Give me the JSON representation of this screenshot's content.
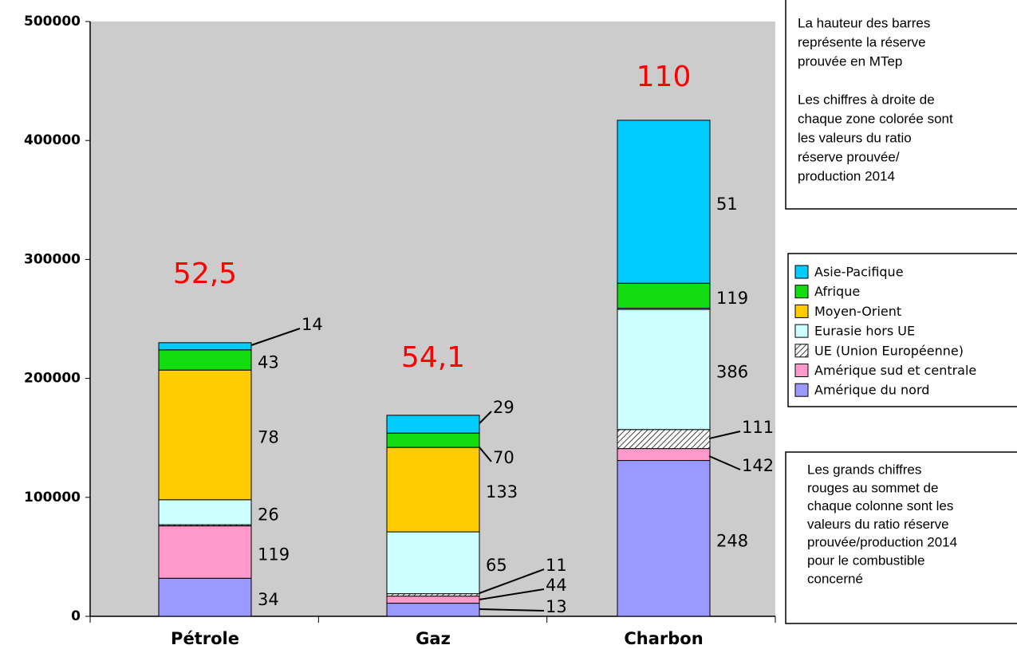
{
  "chart_data": {
    "type": "stacked-bar",
    "categories": [
      "Pétrole",
      "Gaz",
      "Charbon"
    ],
    "series": [
      {
        "name": "Amérique du nord",
        "color": "#9999ff",
        "values": [
          32000,
          11000,
          131000
        ],
        "ratio_labels": [
          34,
          13,
          248
        ]
      },
      {
        "name": "Amérique sud et centrale",
        "color": "#ff99cc",
        "values": [
          44000,
          6000,
          10000
        ],
        "ratio_labels": [
          119,
          44,
          142
        ]
      },
      {
        "name": "UE (Union Européenne)",
        "color": "#ffffff",
        "pattern": "hatch",
        "values": [
          1000,
          2000,
          16000
        ],
        "ratio_labels": [
          null,
          11,
          111
        ]
      },
      {
        "name": "Eurasie hors UE",
        "color": "#ccffff",
        "values": [
          21000,
          52000,
          101000
        ],
        "ratio_labels": [
          26,
          65,
          386
        ]
      },
      {
        "name": "Moyen-Orient",
        "color": "#ffcc00",
        "values": [
          109000,
          71000,
          1000
        ],
        "ratio_labels": [
          78,
          133,
          null
        ]
      },
      {
        "name": "Afrique",
        "color": "#11dd11",
        "values": [
          17000,
          12000,
          21000
        ],
        "ratio_labels": [
          43,
          70,
          119
        ]
      },
      {
        "name": "Asie-Pacifique",
        "color": "#00ccff",
        "values": [
          6000,
          15000,
          137000
        ],
        "ratio_labels": [
          14,
          29,
          51
        ]
      }
    ],
    "total_ratio_labels": [
      "52,5",
      "54,1",
      "110"
    ],
    "ylim": [
      0,
      500000
    ],
    "yticks": [
      0,
      100000,
      200000,
      300000,
      400000,
      500000
    ],
    "grid": false,
    "plot_background": "#cccccc",
    "notes": [
      [
        [
          "La hauteur des barres",
          "représente la réserve",
          "prouvée en MTep"
        ],
        [
          "Les chiffres à droite de",
          "chaque zone colorée sont",
          "les valeurs du ratio",
          "réserve prouvée/",
          "production 2014"
        ]
      ],
      [
        [
          "Les grands chiffres",
          "rouges au sommet de",
          "chaque colonne sont les",
          "valeurs du ratio réserve",
          "prouvée/production 2014",
          "pour le combustible",
          "concerné"
        ]
      ]
    ]
  }
}
